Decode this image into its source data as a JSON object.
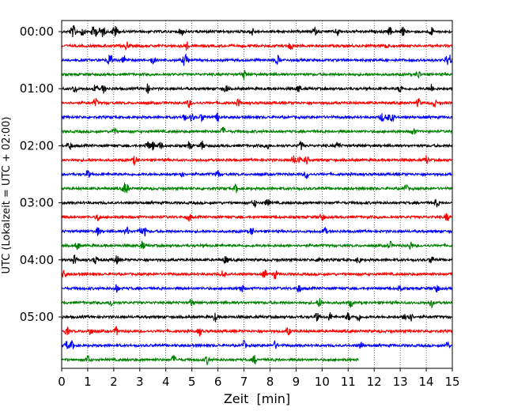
{
  "chart_data": {
    "type": "line",
    "subtype": "helicorder",
    "title": "",
    "xlabel": "Zeit  [min]",
    "ylabel": "UTC (Lokalzeit = UTC + 02:00)",
    "xlim": [
      0,
      15
    ],
    "x_ticks": [
      "0",
      "1",
      "2",
      "3",
      "4",
      "5",
      "6",
      "7",
      "8",
      "9",
      "10",
      "11",
      "12",
      "13",
      "14",
      "15"
    ],
    "x_grid": "dotted vertical at each minute",
    "row_interval_minutes": 15,
    "row_colors": [
      "#000000",
      "#ff0000",
      "#0000ff",
      "#008000"
    ],
    "y_ticks": [
      {
        "label": "00:00",
        "row": 0
      },
      {
        "label": "01:00",
        "row": 4
      },
      {
        "label": "02:00",
        "row": 8
      },
      {
        "label": "03:00",
        "row": 12
      },
      {
        "label": "04:00",
        "row": 16
      },
      {
        "label": "05:00",
        "row": 20
      }
    ],
    "rows": [
      {
        "row": 0,
        "end_min": 15,
        "events": [
          0.4,
          0.5,
          0.8,
          1.2,
          1.3,
          1.5,
          1.6,
          2.0,
          2.1,
          4.6,
          7.3,
          9.7,
          10.6,
          12.6,
          13.1,
          14.2
        ]
      },
      {
        "row": 1,
        "end_min": 15,
        "events": [
          2.5,
          4.8,
          8.8,
          12.5
        ]
      },
      {
        "row": 2,
        "end_min": 15,
        "events": [
          1.8,
          1.9,
          2.4,
          3.5,
          4.7,
          4.8,
          8.3,
          14.8,
          14.9
        ]
      },
      {
        "row": 3,
        "end_min": 15,
        "events": [
          7.0,
          13.7
        ]
      },
      {
        "row": 4,
        "end_min": 15,
        "events": [
          0.5,
          1.3,
          1.6,
          3.3,
          6.3,
          9.1,
          13.0,
          14.2
        ]
      },
      {
        "row": 5,
        "end_min": 15,
        "events": [
          1.3,
          4.9,
          6.8,
          13.7,
          14.3
        ]
      },
      {
        "row": 6,
        "end_min": 15,
        "events": [
          4.7,
          5.0,
          5.4,
          6.0,
          12.3,
          12.5,
          12.7
        ]
      },
      {
        "row": 7,
        "end_min": 15,
        "events": [
          2.0,
          6.2,
          13.5
        ]
      },
      {
        "row": 8,
        "end_min": 15,
        "events": [
          0.3,
          3.3,
          3.5,
          3.8,
          4.9,
          5.4,
          7.9,
          9.2,
          10.6
        ]
      },
      {
        "row": 9,
        "end_min": 15,
        "events": [
          2.8,
          8.9,
          9.1,
          9.4,
          14.0
        ]
      },
      {
        "row": 10,
        "end_min": 15,
        "events": [
          1.0,
          4.6,
          6.0,
          9.4
        ]
      },
      {
        "row": 11,
        "end_min": 15,
        "events": [
          2.4,
          2.5,
          6.7,
          13.2
        ]
      },
      {
        "row": 12,
        "end_min": 15,
        "events": [
          7.4,
          7.9,
          14.4
        ]
      },
      {
        "row": 13,
        "end_min": 15,
        "events": [
          1.4,
          4.9,
          10.0,
          14.8
        ]
      },
      {
        "row": 14,
        "end_min": 15,
        "events": [
          1.4,
          2.5,
          3.0,
          3.2,
          7.3,
          10.1
        ]
      },
      {
        "row": 15,
        "end_min": 15,
        "events": [
          0.6,
          3.1,
          12.6,
          13.4
        ]
      },
      {
        "row": 16,
        "end_min": 15,
        "events": [
          0.5,
          1.3,
          2.1,
          6.3,
          9.9,
          11.4,
          14.2
        ]
      },
      {
        "row": 17,
        "end_min": 15,
        "events": [
          0.1,
          6.2,
          7.8,
          8.2
        ]
      },
      {
        "row": 18,
        "end_min": 15,
        "events": [
          2.1,
          6.9,
          9.1,
          13.0,
          14.4
        ]
      },
      {
        "row": 19,
        "end_min": 15,
        "events": [
          1.9,
          5.0,
          9.9,
          11.1,
          14.2
        ]
      },
      {
        "row": 20,
        "end_min": 15,
        "events": [
          5.9,
          9.8,
          10.3,
          11.0,
          11.4,
          13.2,
          13.4
        ]
      },
      {
        "row": 21,
        "end_min": 15,
        "events": [
          0.2,
          1.1,
          2.1,
          5.3,
          8.7
        ]
      },
      {
        "row": 22,
        "end_min": 15,
        "events": [
          0.2,
          0.4,
          7.0,
          8.2,
          11.5,
          14.8
        ]
      },
      {
        "row": 23,
        "end_min": 11.4,
        "events": [
          1.0,
          4.3,
          5.6,
          7.4
        ]
      }
    ]
  }
}
